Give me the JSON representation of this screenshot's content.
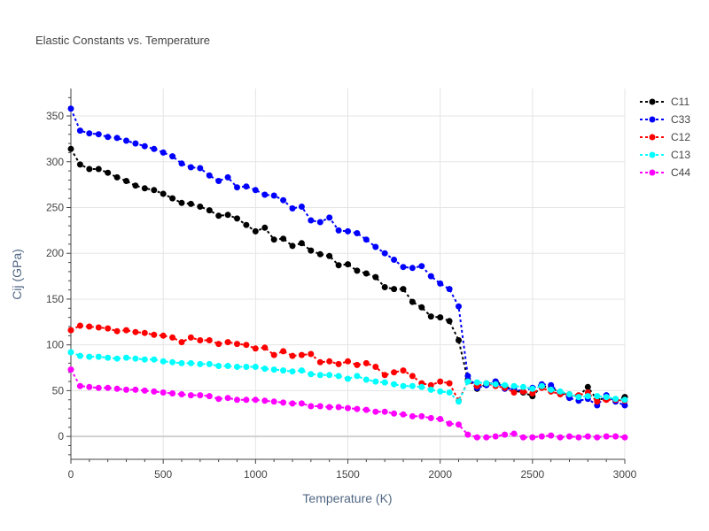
{
  "chart_data": {
    "type": "line",
    "title": "Elastic Constants vs. Temperature",
    "xlabel": "Temperature (K)",
    "ylabel": "Cij (GPa)",
    "xlim": [
      0,
      3000
    ],
    "ylim": [
      -25,
      380
    ],
    "xticks": [
      0,
      500,
      1000,
      1500,
      2000,
      2500,
      3000
    ],
    "yticks": [
      0,
      50,
      100,
      150,
      200,
      250,
      300,
      350
    ],
    "grid": true,
    "legend_position": "top-right",
    "x": [
      0,
      50,
      100,
      150,
      200,
      250,
      300,
      350,
      400,
      450,
      500,
      550,
      600,
      650,
      700,
      750,
      800,
      850,
      900,
      950,
      1000,
      1050,
      1100,
      1150,
      1200,
      1250,
      1300,
      1350,
      1400,
      1450,
      1500,
      1550,
      1600,
      1650,
      1700,
      1750,
      1800,
      1850,
      1900,
      1950,
      2000,
      2050,
      2100,
      2150,
      2200,
      2250,
      2300,
      2350,
      2400,
      2450,
      2500,
      2550,
      2600,
      2650,
      2700,
      2750,
      2800,
      2850,
      2900,
      2950,
      3000
    ],
    "series": [
      {
        "name": "C11",
        "color": "#000000",
        "values": [
          314,
          297,
          292,
          292,
          288,
          283,
          279,
          274,
          271,
          269,
          265,
          260,
          255,
          254,
          251,
          247,
          241,
          242,
          238,
          231,
          224,
          228,
          215,
          216,
          208,
          211,
          203,
          199,
          197,
          187,
          188,
          181,
          178,
          174,
          163,
          161,
          161,
          147,
          141,
          131,
          130,
          126,
          105,
          62,
          52,
          57,
          60,
          55,
          50,
          48,
          44,
          55,
          53,
          48,
          45,
          44,
          54,
          40,
          42,
          40,
          43
        ]
      },
      {
        "name": "C33",
        "color": "#0000ff",
        "values": [
          358,
          334,
          331,
          330,
          327,
          326,
          323,
          320,
          317,
          314,
          310,
          306,
          298,
          294,
          293,
          285,
          279,
          283,
          272,
          273,
          269,
          264,
          263,
          258,
          249,
          251,
          236,
          234,
          239,
          225,
          224,
          222,
          215,
          207,
          200,
          193,
          185,
          184,
          186,
          175,
          167,
          161,
          142,
          66,
          53,
          56,
          60,
          52,
          52,
          49,
          53,
          57,
          56,
          47,
          42,
          39,
          41,
          34,
          45,
          38,
          34
        ]
      },
      {
        "name": "C12",
        "color": "#ff0000",
        "values": [
          116,
          121,
          120,
          119,
          118,
          115,
          116,
          114,
          113,
          111,
          110,
          108,
          103,
          108,
          105,
          105,
          101,
          103,
          101,
          100,
          96,
          97,
          89,
          93,
          88,
          89,
          90,
          81,
          82,
          79,
          82,
          78,
          80,
          76,
          67,
          70,
          72,
          66,
          58,
          56,
          60,
          58,
          39,
          60,
          55,
          58,
          55,
          53,
          48,
          49,
          47,
          53,
          49,
          46,
          46,
          45,
          48,
          38,
          40,
          40,
          39
        ]
      },
      {
        "name": "C13",
        "color": "#00ffff",
        "values": [
          92,
          88,
          87,
          87,
          86,
          85,
          86,
          85,
          84,
          84,
          82,
          81,
          80,
          80,
          79,
          79,
          77,
          77,
          76,
          76,
          76,
          74,
          73,
          72,
          71,
          72,
          68,
          67,
          67,
          66,
          63,
          66,
          62,
          60,
          59,
          57,
          55,
          55,
          54,
          51,
          49,
          48,
          38,
          60,
          59,
          58,
          57,
          56,
          55,
          54,
          52,
          55,
          51,
          49,
          46,
          43,
          44,
          44,
          43,
          41,
          40
        ]
      },
      {
        "name": "C44",
        "color": "#ff00ff",
        "values": [
          73,
          55,
          54,
          53,
          53,
          52,
          51,
          51,
          50,
          49,
          48,
          47,
          46,
          45,
          45,
          44,
          41,
          42,
          40,
          40,
          40,
          39,
          38,
          37,
          36,
          36,
          33,
          33,
          32,
          32,
          31,
          30,
          29,
          27,
          27,
          25,
          24,
          22,
          22,
          20,
          19,
          14,
          13,
          2,
          -1,
          -1,
          0,
          2,
          3,
          -1,
          -1,
          0,
          1,
          -1,
          0,
          -1,
          0,
          -1,
          0,
          0,
          -1
        ]
      }
    ]
  }
}
